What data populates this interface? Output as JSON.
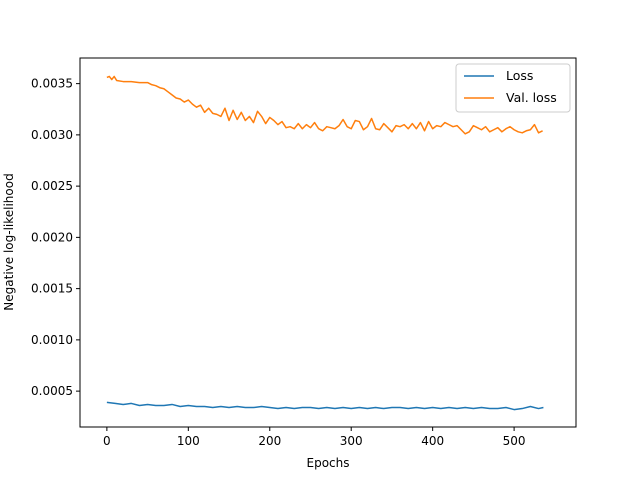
{
  "chart_data": {
    "type": "line",
    "xlabel": "Epochs",
    "ylabel": "Negative log-likelihood",
    "xlim": [
      -33,
      576
    ],
    "ylim": [
      0.00015,
      0.00375
    ],
    "xticks": [
      0,
      100,
      200,
      300,
      400,
      500
    ],
    "xtick_labels": [
      "0",
      "100",
      "200",
      "300",
      "400",
      "500"
    ],
    "yticks": [
      0.0005,
      0.001,
      0.0015,
      0.002,
      0.0025,
      0.003,
      0.0035
    ],
    "ytick_labels": [
      "0.0005",
      "0.0010",
      "0.0015",
      "0.0020",
      "0.0025",
      "0.0030",
      "0.0035"
    ],
    "grid": false,
    "legend_position": "top-right",
    "series": [
      {
        "name": "Loss",
        "color": "#1f77b4",
        "x": [
          0,
          10,
          20,
          30,
          40,
          50,
          60,
          70,
          80,
          90,
          100,
          110,
          120,
          130,
          140,
          150,
          160,
          170,
          180,
          190,
          200,
          210,
          220,
          230,
          240,
          250,
          260,
          270,
          280,
          290,
          300,
          310,
          320,
          330,
          340,
          350,
          360,
          370,
          380,
          390,
          400,
          410,
          420,
          430,
          440,
          450,
          460,
          470,
          480,
          490,
          500,
          510,
          520,
          530,
          536
        ],
        "values": [
          0.00039,
          0.00038,
          0.00037,
          0.00038,
          0.00036,
          0.00037,
          0.00036,
          0.00036,
          0.00037,
          0.00035,
          0.00036,
          0.00035,
          0.00035,
          0.00034,
          0.00035,
          0.00034,
          0.00035,
          0.00034,
          0.00034,
          0.00035,
          0.00034,
          0.00033,
          0.00034,
          0.00033,
          0.00034,
          0.00034,
          0.00033,
          0.00034,
          0.00033,
          0.00034,
          0.00033,
          0.00034,
          0.00033,
          0.00034,
          0.00033,
          0.00034,
          0.00034,
          0.00033,
          0.00034,
          0.00033,
          0.00034,
          0.00033,
          0.00034,
          0.00033,
          0.00034,
          0.00033,
          0.00034,
          0.00033,
          0.00033,
          0.00034,
          0.00032,
          0.00033,
          0.00035,
          0.00033,
          0.00034
        ]
      },
      {
        "name": "Val. loss",
        "color": "#ff7f0e",
        "x": [
          0,
          3,
          6,
          9,
          12,
          20,
          30,
          40,
          50,
          55,
          60,
          65,
          70,
          75,
          80,
          85,
          90,
          95,
          100,
          105,
          110,
          115,
          120,
          125,
          130,
          135,
          140,
          145,
          150,
          155,
          160,
          165,
          170,
          175,
          180,
          185,
          190,
          195,
          200,
          205,
          210,
          215,
          220,
          225,
          230,
          235,
          240,
          245,
          250,
          255,
          260,
          265,
          270,
          275,
          280,
          285,
          290,
          295,
          300,
          305,
          310,
          315,
          320,
          325,
          330,
          335,
          340,
          345,
          350,
          355,
          360,
          365,
          370,
          375,
          380,
          385,
          390,
          395,
          400,
          405,
          410,
          415,
          420,
          425,
          430,
          435,
          440,
          445,
          450,
          455,
          460,
          465,
          470,
          475,
          480,
          485,
          490,
          495,
          500,
          505,
          510,
          515,
          520,
          525,
          530,
          535
        ],
        "values": [
          0.00356,
          0.00357,
          0.00354,
          0.00357,
          0.00353,
          0.00352,
          0.00352,
          0.00351,
          0.00351,
          0.00349,
          0.00348,
          0.00346,
          0.00345,
          0.00342,
          0.00339,
          0.00336,
          0.00335,
          0.00332,
          0.00334,
          0.0033,
          0.00327,
          0.00329,
          0.00322,
          0.00326,
          0.00321,
          0.0032,
          0.00318,
          0.00326,
          0.00314,
          0.00324,
          0.00315,
          0.00322,
          0.00314,
          0.00318,
          0.00312,
          0.00323,
          0.00318,
          0.00311,
          0.00317,
          0.00314,
          0.0031,
          0.00313,
          0.00307,
          0.00308,
          0.00306,
          0.00311,
          0.00306,
          0.0031,
          0.00307,
          0.00312,
          0.00306,
          0.00304,
          0.00308,
          0.00307,
          0.00306,
          0.00309,
          0.00315,
          0.00308,
          0.00306,
          0.00314,
          0.00313,
          0.00305,
          0.00308,
          0.00316,
          0.00306,
          0.00305,
          0.00311,
          0.00307,
          0.00303,
          0.00309,
          0.00308,
          0.0031,
          0.00306,
          0.00311,
          0.00306,
          0.00312,
          0.00304,
          0.00313,
          0.00306,
          0.00309,
          0.00308,
          0.00312,
          0.0031,
          0.00308,
          0.00309,
          0.00305,
          0.00301,
          0.00303,
          0.00309,
          0.00307,
          0.00305,
          0.00308,
          0.00303,
          0.00305,
          0.00307,
          0.00303,
          0.00306,
          0.00308,
          0.00305,
          0.00303,
          0.00302,
          0.00304,
          0.00305,
          0.0031,
          0.00302,
          0.00304
        ]
      }
    ]
  }
}
